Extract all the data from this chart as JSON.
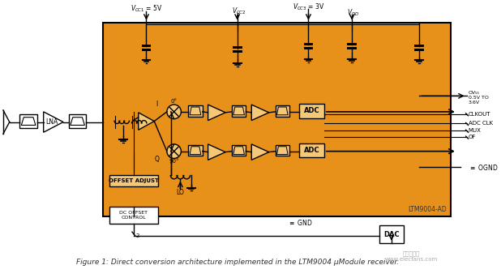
{
  "bg_color": "#ffffff",
  "orange_bg": "#E8911A",
  "orange_light": "#F0A830",
  "orange_dark": "#CC7A00",
  "box_fill": "#E8911A",
  "inner_box_fill": "#F5C878",
  "white": "#ffffff",
  "black": "#000000",
  "gray_text": "#555555",
  "caption": "Figure 1: Direct conversion architecture implemented in the LTM9004 μModule receiver.",
  "chip_label": "LTM9004-AD",
  "vcc1_label": "V₁ = 5V",
  "vcc2_label": "V₂",
  "vcc3_label": "V₃ = 3V",
  "vdd_label": "V₄₅",
  "ovdd_label": "OV₅₅",
  "ovdd_range": "0.5V TO",
  "ovdd_range2": "3.6V",
  "clkout_label": "CLKOUT",
  "adcclk_label": "ADC CLK",
  "mux_label": "MUX",
  "of_label": "OF",
  "ognd_label": "OGND",
  "lo_label": "LO",
  "gnd_label": "GND",
  "dc_offset_label": "DC OFFSET\nCONTROL",
  "offset_adjust_label": "OFFSET ADJUST",
  "lna_label": "LNA",
  "adc_label": "ADC",
  "dac_label": "DAC",
  "i_label": "I",
  "q_label": "Q",
  "deg0_label": "0°",
  "deg90_label": "90°"
}
